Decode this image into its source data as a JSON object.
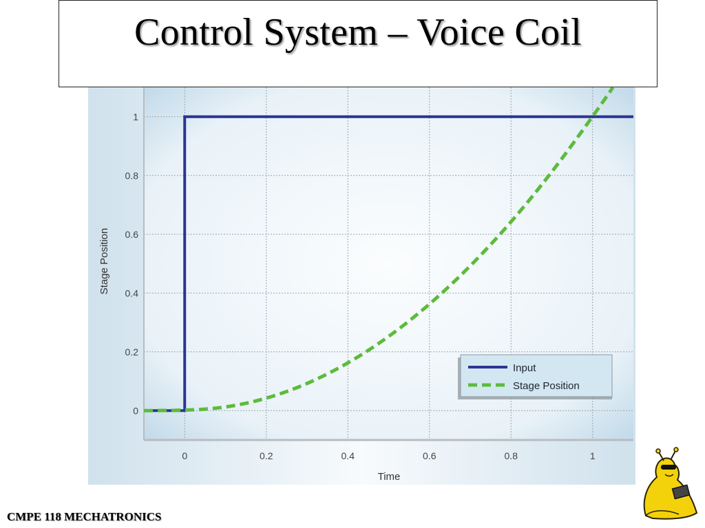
{
  "slide": {
    "title": "Control System – Voice Coil",
    "footer": "CMPE 118 MECHATRONICS"
  },
  "colors": {
    "plot_bg": "#e6f1f8",
    "input_line": "#2a3592",
    "stage_line": "#5dbb3c",
    "grid": "#9aa6ae"
  },
  "mascot": {
    "icon": "banana-slug-mascot-icon"
  },
  "chart_data": {
    "type": "line",
    "title": "",
    "xlabel": "Time",
    "ylabel": "Stage Position",
    "xlim": [
      -0.1,
      1.1
    ],
    "ylim": [
      -0.1,
      1.1
    ],
    "x_ticks": [
      0,
      0.2,
      0.4,
      0.6,
      0.8,
      1
    ],
    "x_tick_labels": [
      "0",
      "0.2",
      "0.4",
      "0.6",
      "0.8",
      "1"
    ],
    "y_ticks": [
      0,
      0.2,
      0.4,
      0.6,
      0.8,
      1
    ],
    "y_tick_labels": [
      "0",
      "0.2",
      "0.4",
      "0.6",
      "0.8",
      "1"
    ],
    "grid": true,
    "legend": {
      "placement": "bottom-right",
      "entries": [
        "Input",
        "Stage Position"
      ]
    },
    "series": [
      {
        "name": "Input",
        "style": "solid",
        "x": [
          -0.1,
          0,
          0,
          1.1
        ],
        "y": [
          0,
          0,
          1,
          1
        ]
      },
      {
        "name": "Stage Position",
        "style": "dashed",
        "x": [
          -0.1,
          0,
          0.1,
          0.2,
          0.3,
          0.4,
          0.5,
          0.6,
          0.7,
          0.8,
          0.9,
          1.0,
          1.05
        ],
        "y": [
          0,
          0,
          0.01,
          0.04,
          0.09,
          0.16,
          0.25,
          0.36,
          0.49,
          0.64,
          0.81,
          1.0,
          1.1
        ]
      }
    ]
  }
}
